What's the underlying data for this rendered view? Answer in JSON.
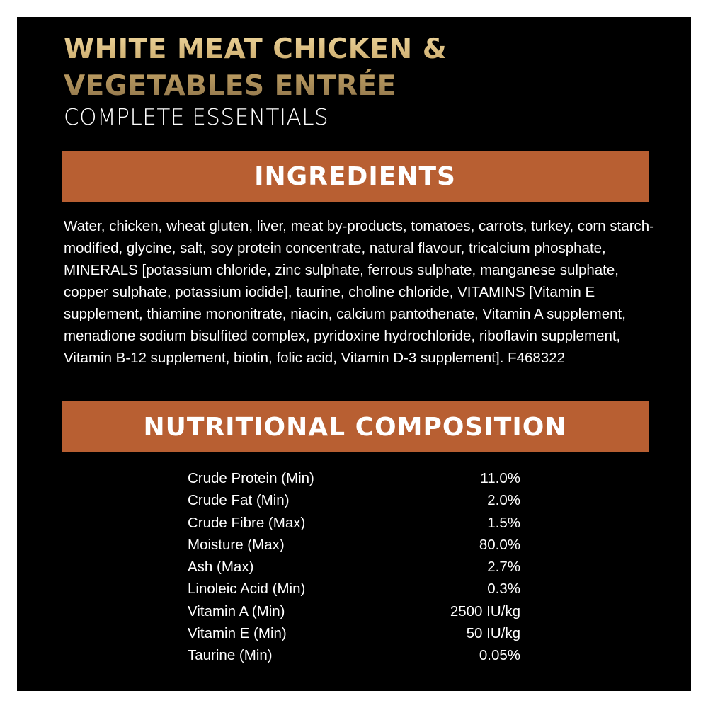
{
  "header": {
    "title_line1": "WHITE MEAT CHICKEN &",
    "title_line2": "VEGETABLES ENTRÉE",
    "subtitle": "COMPLETE ESSENTIALS"
  },
  "ingredients": {
    "heading": "INGREDIENTS",
    "text": "Water, chicken, wheat gluten, liver, meat by-products, tomatoes, carrots, turkey, corn starch-modified, glycine, salt, soy protein concentrate, natural flavour, tricalcium phosphate, MINERALS [potassium chloride, zinc sulphate, ferrous sulphate, manganese sulphate, copper sulphate, potassium iodide], taurine, choline chloride, VITAMINS [Vitamin E supplement, thiamine mononitrate, niacin, calcium pantothenate, Vitamin A supplement, menadione sodium bisulfited complex, pyridoxine hydrochloride, riboflavin supplement, Vitamin B-12 supplement, biotin, folic acid, Vitamin D-3 supplement]. F468322"
  },
  "nutrition": {
    "heading": "NUTRITIONAL COMPOSITION",
    "rows": [
      {
        "label": "Crude Protein (Min)",
        "value": "11.0%"
      },
      {
        "label": "Crude Fat (Min)",
        "value": "2.0%"
      },
      {
        "label": "Crude Fibre (Max)",
        "value": "1.5%"
      },
      {
        "label": "Moisture (Max)",
        "value": "80.0%"
      },
      {
        "label": "Ash (Max)",
        "value": "2.7%"
      },
      {
        "label": "Linoleic Acid (Min)",
        "value": "0.3%"
      },
      {
        "label": "Vitamin A (Min)",
        "value": "2500 IU/kg"
      },
      {
        "label": "Vitamin E (Min)",
        "value": "50 IU/kg"
      },
      {
        "label": "Taurine (Min)",
        "value": "0.05%"
      }
    ]
  },
  "colors": {
    "band": "#b85f32",
    "background": "#000000",
    "title_gold": "#d4b577"
  }
}
